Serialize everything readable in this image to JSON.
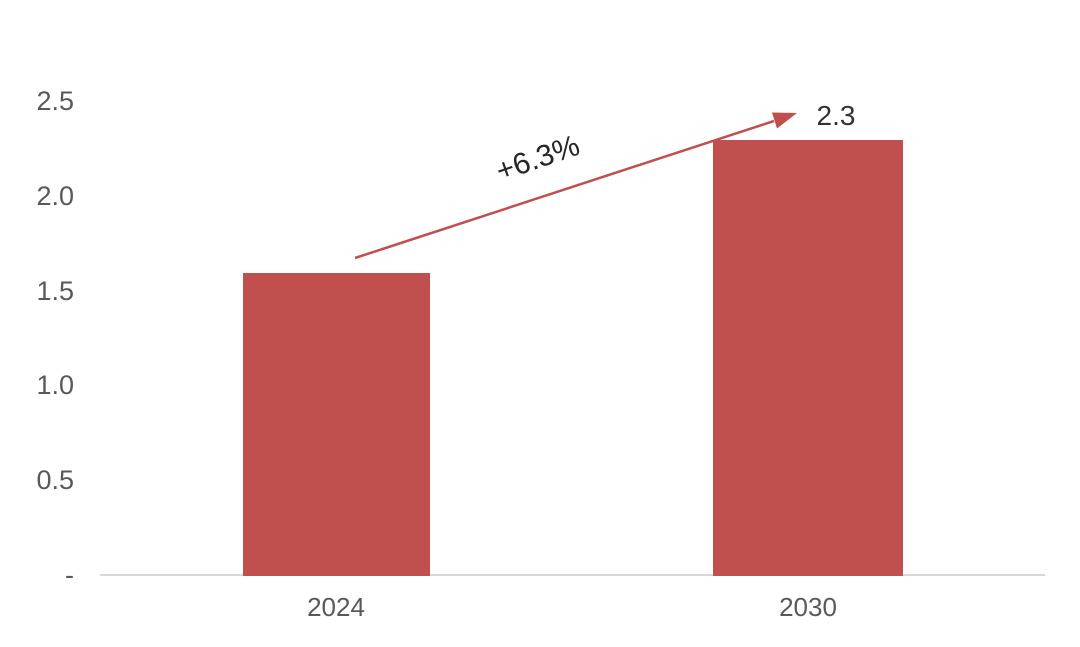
{
  "chart_data": {
    "type": "bar",
    "categories": [
      "2024",
      "2030"
    ],
    "values": [
      1.6,
      2.3
    ],
    "bar_labels": [
      "",
      "2.3"
    ],
    "annotation": "+6.3%",
    "title": "",
    "xlabel": "",
    "ylabel": "",
    "ylim": [
      0,
      2.5
    ],
    "yticks": [
      2.5,
      2.0,
      1.5,
      1.0,
      0.5,
      0
    ],
    "ytick_labels": [
      "2.5",
      "2.0",
      "1.5",
      "1.0",
      "0.5",
      "-"
    ],
    "grid": false,
    "legend": false,
    "layout_hint": "single red growth arrow from top of 2024 bar to top of 2030 bar, annotation rotated along arrow",
    "colors": {
      "bar": "#C0504D",
      "arrow": "#C0504D",
      "axis_line": "#D8D8D8",
      "tick_text": "#595959",
      "annotation_text": "#262626"
    }
  }
}
